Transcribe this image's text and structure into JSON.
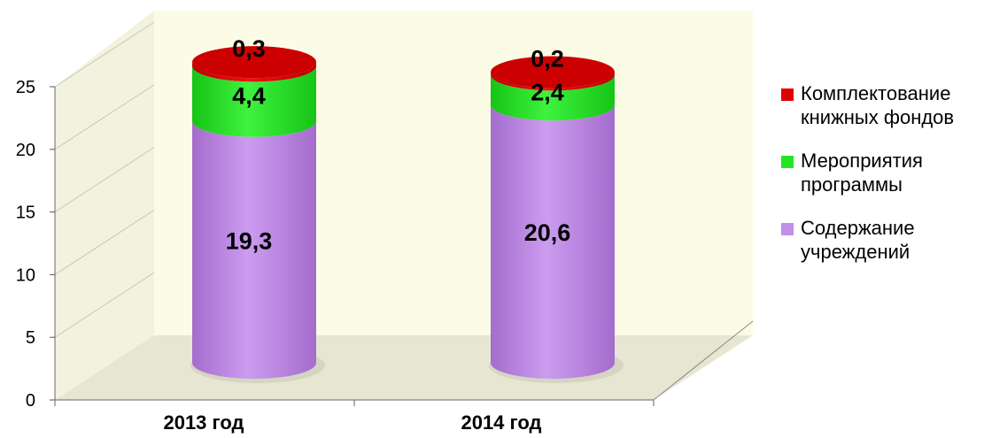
{
  "chart_data": {
    "type": "bar",
    "stacked": true,
    "shape": "cylinder-3d",
    "categories": [
      "2013 год",
      "2014 год"
    ],
    "series": [
      {
        "name": "Содержание учреждений",
        "values": [
          19.3,
          20.6
        ],
        "labels": [
          "19,3",
          "20,6"
        ],
        "color": "#c28ee8"
      },
      {
        "name": "Мероприятия программы",
        "values": [
          4.4,
          2.4
        ],
        "labels": [
          "4,4",
          "2,4"
        ],
        "color": "#22e622"
      },
      {
        "name": "Комплектование книжных фондов",
        "values": [
          0.3,
          0.2
        ],
        "labels": [
          "0,3",
          "0,2"
        ],
        "color": "#e00000"
      }
    ],
    "yticks": [
      "0",
      "5",
      "10",
      "15",
      "20",
      "25"
    ],
    "ylim": [
      0,
      25
    ],
    "grid": true,
    "legend_position": "right",
    "colors": {
      "wall": "#fcfce6",
      "floor": "#e7e6d2"
    }
  },
  "legend": [
    {
      "line1": "Комплектование",
      "line2": "книжных фондов",
      "color": "#e00000"
    },
    {
      "line1": "Мероприятия",
      "line2": "программы",
      "color": "#22e622"
    },
    {
      "line1": "Содержание",
      "line2": "учреждений",
      "color": "#c28ee8"
    }
  ]
}
